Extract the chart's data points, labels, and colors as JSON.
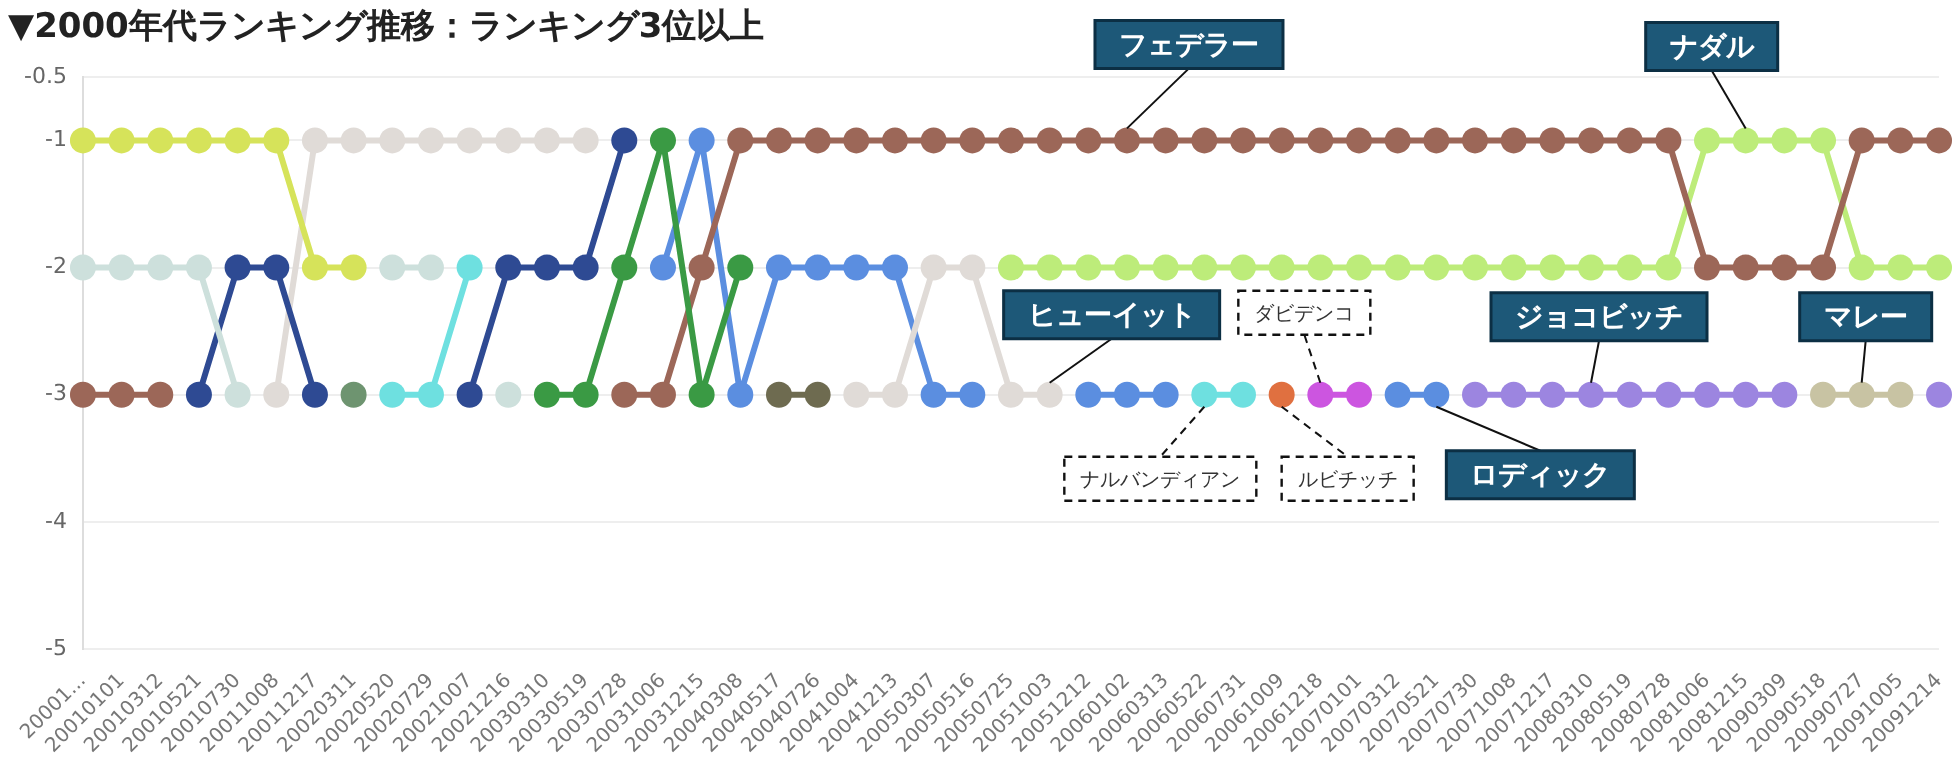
{
  "chart_data": {
    "type": "line",
    "title": "▼2000年代ランキング推移：ランキング3位以上",
    "categories": [
      "20001...",
      "20010101",
      "20010312",
      "20010521",
      "20010730",
      "20011008",
      "20011217",
      "20020311",
      "20020520",
      "20020729",
      "20021007",
      "20021216",
      "20030310",
      "20030519",
      "20030728",
      "20031006",
      "20031215",
      "20040308",
      "20040517",
      "20040726",
      "20041004",
      "20041213",
      "20050307",
      "20050516",
      "20050725",
      "20051003",
      "20051212",
      "20060102",
      "20060313",
      "20060522",
      "20060731",
      "20061009",
      "20061218",
      "20070101",
      "20070312",
      "20070521",
      "20070730",
      "20071008",
      "20071217",
      "20080310",
      "20080519",
      "20080728",
      "20081006",
      "20081215",
      "20090309",
      "20090518",
      "20090727",
      "20091005",
      "20091214"
    ],
    "series": [
      {
        "color": "#d6e35a",
        "values": [
          -1,
          -1,
          -1,
          -1,
          -1,
          -1,
          -2,
          -2,
          null,
          null,
          null,
          null,
          null,
          null,
          null,
          null,
          null,
          null,
          null,
          null,
          null,
          null,
          null,
          null,
          null,
          null,
          null,
          null,
          null,
          null,
          null,
          null,
          null,
          null,
          null,
          null,
          null,
          null,
          null,
          null,
          null,
          null,
          null,
          null,
          null,
          null,
          null,
          null,
          null
        ]
      },
      {
        "color": "#cde0dc",
        "values": [
          -2,
          -2,
          -2,
          -2,
          -3,
          null,
          null,
          null,
          -2,
          -2,
          null,
          -3,
          null,
          null,
          null,
          null,
          null,
          null,
          null,
          null,
          null,
          null,
          null,
          null,
          null,
          null,
          null,
          null,
          null,
          null,
          null,
          null,
          null,
          null,
          null,
          null,
          null,
          null,
          null,
          null,
          null,
          null,
          null,
          null,
          null,
          null,
          null,
          null,
          null
        ]
      },
      {
        "color": "#2e4a93",
        "values": [
          null,
          null,
          null,
          -3,
          -2,
          -2,
          -3,
          null,
          null,
          null,
          -3,
          -2,
          -2,
          -2,
          -1,
          null,
          null,
          null,
          null,
          null,
          null,
          null,
          null,
          null,
          null,
          null,
          null,
          null,
          null,
          null,
          null,
          null,
          null,
          null,
          null,
          null,
          null,
          null,
          null,
          null,
          null,
          null,
          null,
          null,
          null,
          null,
          null,
          null,
          null
        ]
      },
      {
        "color": "#e0dbd7",
        "values": [
          null,
          null,
          null,
          null,
          null,
          -3,
          -1,
          -1,
          -1,
          -1,
          -1,
          -1,
          -1,
          -1,
          null,
          null,
          null,
          null,
          null,
          null,
          -3,
          -3,
          -2,
          -2,
          -3,
          -3,
          null,
          null,
          null,
          null,
          null,
          null,
          null,
          null,
          null,
          null,
          null,
          null,
          null,
          null,
          null,
          null,
          null,
          null,
          null,
          null,
          null,
          null,
          null
        ]
      },
      {
        "color": "#6e9470",
        "values": [
          null,
          null,
          null,
          null,
          null,
          null,
          null,
          -3,
          null,
          null,
          null,
          null,
          null,
          null,
          null,
          null,
          null,
          null,
          null,
          null,
          null,
          null,
          null,
          null,
          null,
          null,
          null,
          null,
          null,
          null,
          null,
          null,
          null,
          null,
          null,
          null,
          null,
          null,
          null,
          null,
          null,
          null,
          null,
          null,
          null,
          null,
          null,
          null,
          null
        ]
      },
      {
        "color": "#6ee0e0",
        "values": [
          null,
          null,
          null,
          null,
          null,
          null,
          null,
          null,
          -3,
          -3,
          -2,
          null,
          null,
          null,
          null,
          null,
          null,
          null,
          null,
          null,
          null,
          null,
          null,
          null,
          null,
          null,
          null,
          null,
          null,
          -3,
          -3,
          null,
          null,
          null,
          null,
          null,
          null,
          null,
          null,
          null,
          null,
          null,
          null,
          null,
          null,
          null,
          null,
          null,
          null
        ]
      },
      {
        "color": "#3a9a44",
        "values": [
          null,
          null,
          null,
          null,
          null,
          null,
          null,
          null,
          null,
          null,
          null,
          null,
          -3,
          -3,
          -2,
          -1,
          -3,
          -2,
          null,
          null,
          null,
          null,
          null,
          null,
          null,
          null,
          null,
          null,
          null,
          null,
          null,
          null,
          null,
          null,
          null,
          null,
          null,
          null,
          null,
          null,
          null,
          null,
          null,
          null,
          null,
          null,
          null,
          null,
          null
        ]
      },
      {
        "color": "#9c6758",
        "values": [
          -3,
          -3,
          -3,
          null,
          null,
          null,
          null,
          null,
          null,
          null,
          null,
          null,
          null,
          null,
          -3,
          -3,
          -2,
          -1,
          -1,
          -1,
          -1,
          -1,
          -1,
          -1,
          -1,
          -1,
          -1,
          -1,
          -1,
          -1,
          -1,
          -1,
          -1,
          -1,
          -1,
          -1,
          -1,
          -1,
          -1,
          -1,
          -1,
          -1,
          -2,
          -2,
          -2,
          -2,
          -1,
          -1,
          -1
        ]
      },
      {
        "color": "#5b8ee0",
        "values": [
          null,
          null,
          null,
          null,
          null,
          null,
          null,
          null,
          null,
          null,
          null,
          null,
          null,
          null,
          null,
          -2,
          -1,
          -3,
          -2,
          -2,
          -2,
          -2,
          -3,
          -3,
          null,
          null,
          -3,
          -3,
          -3,
          null,
          null,
          null,
          null,
          null,
          -3,
          -3,
          null,
          null,
          null,
          null,
          null,
          null,
          null,
          null,
          null,
          null,
          null,
          null,
          null
        ]
      },
      {
        "color": "#6e6b50",
        "values": [
          null,
          null,
          null,
          null,
          null,
          null,
          null,
          null,
          null,
          null,
          null,
          null,
          null,
          null,
          null,
          null,
          null,
          null,
          -3,
          -3,
          null,
          null,
          null,
          null,
          null,
          null,
          null,
          null,
          null,
          null,
          null,
          null,
          null,
          null,
          null,
          null,
          null,
          null,
          null,
          null,
          null,
          null,
          null,
          null,
          null,
          null,
          null,
          null,
          null
        ]
      },
      {
        "color": "#bdec7a",
        "values": [
          null,
          null,
          null,
          null,
          null,
          null,
          null,
          null,
          null,
          null,
          null,
          null,
          null,
          null,
          null,
          null,
          null,
          null,
          null,
          null,
          null,
          null,
          null,
          null,
          -2,
          -2,
          -2,
          -2,
          -2,
          -2,
          -2,
          -2,
          -2,
          -2,
          -2,
          -2,
          -2,
          -2,
          -2,
          -2,
          -2,
          -2,
          -1,
          -1,
          -1,
          -1,
          -2,
          -2,
          -2
        ]
      },
      {
        "color": "#e07040",
        "values": [
          null,
          null,
          null,
          null,
          null,
          null,
          null,
          null,
          null,
          null,
          null,
          null,
          null,
          null,
          null,
          null,
          null,
          null,
          null,
          null,
          null,
          null,
          null,
          null,
          null,
          null,
          null,
          null,
          null,
          null,
          null,
          -3,
          null,
          null,
          null,
          null,
          null,
          null,
          null,
          null,
          null,
          null,
          null,
          null,
          null,
          null,
          null,
          null,
          null
        ]
      },
      {
        "color": "#cc55e0",
        "values": [
          null,
          null,
          null,
          null,
          null,
          null,
          null,
          null,
          null,
          null,
          null,
          null,
          null,
          null,
          null,
          null,
          null,
          null,
          null,
          null,
          null,
          null,
          null,
          null,
          null,
          null,
          null,
          null,
          null,
          null,
          null,
          null,
          -3,
          -3,
          null,
          null,
          null,
          null,
          null,
          null,
          null,
          null,
          null,
          null,
          null,
          null,
          null,
          null,
          null
        ]
      },
      {
        "color": "#9c85e0",
        "values": [
          null,
          null,
          null,
          null,
          null,
          null,
          null,
          null,
          null,
          null,
          null,
          null,
          null,
          null,
          null,
          null,
          null,
          null,
          null,
          null,
          null,
          null,
          null,
          null,
          null,
          null,
          null,
          null,
          null,
          null,
          null,
          null,
          null,
          null,
          null,
          null,
          -3,
          -3,
          -3,
          -3,
          -3,
          -3,
          -3,
          -3,
          -3,
          null,
          null,
          null,
          -3
        ]
      },
      {
        "color": "#c8c3a3",
        "values": [
          null,
          null,
          null,
          null,
          null,
          null,
          null,
          null,
          null,
          null,
          null,
          null,
          null,
          null,
          null,
          null,
          null,
          null,
          null,
          null,
          null,
          null,
          null,
          null,
          null,
          null,
          null,
          null,
          null,
          null,
          null,
          null,
          null,
          null,
          null,
          null,
          null,
          null,
          null,
          null,
          null,
          null,
          null,
          null,
          null,
          -3,
          -3,
          -3,
          null
        ]
      }
    ],
    "ylim": [
      -5,
      -0.5
    ],
    "yticks": [
      -5,
      -4,
      -3,
      -2,
      -1,
      -0.5
    ],
    "grid": "y",
    "legend": false,
    "marker": "circle",
    "line_style": "solid",
    "annotations": [
      {
        "text": "フェデラー",
        "x": "20060102",
        "y": -1
      },
      {
        "text": "ナダル",
        "x": "20081215",
        "y": -1
      },
      {
        "text": "ヒューイット",
        "x": "20051003",
        "y": -3
      },
      {
        "text": "ジョコビッチ",
        "x": "20080310",
        "y": -3
      },
      {
        "text": "マレー",
        "x": "20090727",
        "y": -3
      },
      {
        "text": "ロディック",
        "x": "20070521",
        "y": -3
      },
      {
        "text": "ダビデンコ",
        "x": "20061218",
        "y": -3
      },
      {
        "text": "ナルバンディアン",
        "x": "20060522",
        "y": -3
      },
      {
        "text": "ルビチッチ",
        "x": "20061009",
        "y": -3
      }
    ]
  }
}
